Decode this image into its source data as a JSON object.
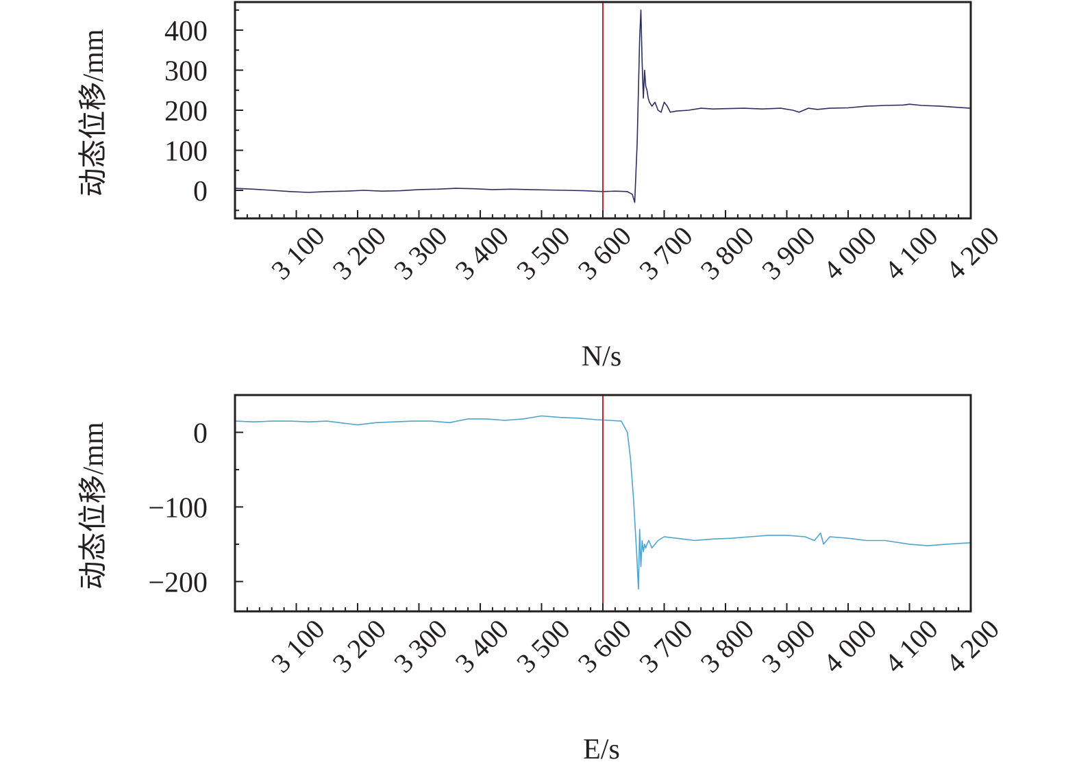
{
  "chart_data": [
    {
      "type": "line",
      "title": "",
      "xlabel": "N/s",
      "ylabel": "动态位移/mm",
      "xlim": [
        3000,
        4200
      ],
      "ylim": [
        -70,
        470
      ],
      "x_ticks": [
        3100,
        3200,
        3300,
        3400,
        3500,
        3600,
        3700,
        3800,
        3900,
        4000,
        4100,
        4200
      ],
      "x_tick_labels": [
        "3 100",
        "3 200",
        "3 300",
        "3 400",
        "3 500",
        "3 600",
        "3 700",
        "3 800",
        "3 900",
        "4 000",
        "4 100",
        "4 200"
      ],
      "y_ticks": [
        0,
        100,
        200,
        300,
        400
      ],
      "y_tick_labels": [
        "0",
        "100",
        "200",
        "300",
        "400"
      ],
      "grid": false,
      "vertical_marker_x": 3600,
      "series": [
        {
          "color": "#2b2d5e",
          "x": [
            3000,
            3030,
            3060,
            3090,
            3120,
            3150,
            3180,
            3210,
            3240,
            3270,
            3300,
            3330,
            3360,
            3390,
            3420,
            3450,
            3480,
            3510,
            3540,
            3570,
            3600,
            3620,
            3640,
            3648,
            3652,
            3656,
            3660,
            3662,
            3664,
            3666,
            3668,
            3670,
            3672,
            3674,
            3676,
            3678,
            3680,
            3685,
            3690,
            3695,
            3700,
            3705,
            3710,
            3720,
            3740,
            3760,
            3780,
            3800,
            3830,
            3860,
            3890,
            3910,
            3920,
            3935,
            3950,
            3970,
            4000,
            4030,
            4060,
            4090,
            4100,
            4120,
            4150,
            4180,
            4200
          ],
          "y": [
            5,
            3,
            0,
            -3,
            -5,
            -3,
            -2,
            0,
            -2,
            -1,
            2,
            3,
            5,
            4,
            2,
            3,
            2,
            1,
            0,
            -1,
            -3,
            -2,
            -3,
            -10,
            -30,
            120,
            380,
            450,
            320,
            230,
            300,
            260,
            250,
            230,
            220,
            215,
            210,
            220,
            200,
            195,
            220,
            210,
            195,
            198,
            200,
            205,
            203,
            204,
            205,
            203,
            205,
            200,
            195,
            205,
            202,
            205,
            206,
            210,
            212,
            213,
            215,
            212,
            210,
            207,
            205
          ]
        }
      ]
    },
    {
      "type": "line",
      "title": "",
      "xlabel": "E/s",
      "ylabel": "动态位移/mm",
      "xlim": [
        3000,
        4200
      ],
      "ylim": [
        -240,
        50
      ],
      "x_ticks": [
        3100,
        3200,
        3300,
        3400,
        3500,
        3600,
        3700,
        3800,
        3900,
        4000,
        4100,
        4200
      ],
      "x_tick_labels": [
        "3 100",
        "3 200",
        "3 300",
        "3 400",
        "3 500",
        "3 600",
        "3 700",
        "3 800",
        "3 900",
        "4 000",
        "4 100",
        "4 200"
      ],
      "y_ticks": [
        0,
        -100,
        -200
      ],
      "y_tick_labels": [
        "0",
        "−100",
        "−200"
      ],
      "grid": false,
      "vertical_marker_x": 3600,
      "series": [
        {
          "color": "#4fa3cf",
          "x": [
            3000,
            3030,
            3060,
            3090,
            3120,
            3150,
            3180,
            3200,
            3230,
            3260,
            3290,
            3320,
            3350,
            3380,
            3410,
            3440,
            3470,
            3500,
            3530,
            3560,
            3590,
            3610,
            3630,
            3640,
            3645,
            3650,
            3655,
            3658,
            3660,
            3662,
            3664,
            3666,
            3668,
            3670,
            3672,
            3675,
            3680,
            3685,
            3690,
            3700,
            3720,
            3750,
            3780,
            3810,
            3840,
            3870,
            3900,
            3930,
            3945,
            3955,
            3960,
            3970,
            4000,
            4030,
            4060,
            4100,
            4130,
            4160,
            4200
          ],
          "y": [
            15,
            14,
            15,
            15,
            14,
            15,
            12,
            10,
            13,
            14,
            15,
            15,
            13,
            18,
            18,
            16,
            18,
            22,
            20,
            19,
            17,
            16,
            15,
            0,
            -35,
            -90,
            -160,
            -210,
            -130,
            -180,
            -145,
            -160,
            -150,
            -155,
            -150,
            -145,
            -155,
            -150,
            -145,
            -140,
            -142,
            -145,
            -143,
            -142,
            -140,
            -138,
            -138,
            -140,
            -145,
            -135,
            -150,
            -140,
            -142,
            -145,
            -145,
            -150,
            -152,
            -150,
            -148
          ]
        }
      ]
    }
  ]
}
